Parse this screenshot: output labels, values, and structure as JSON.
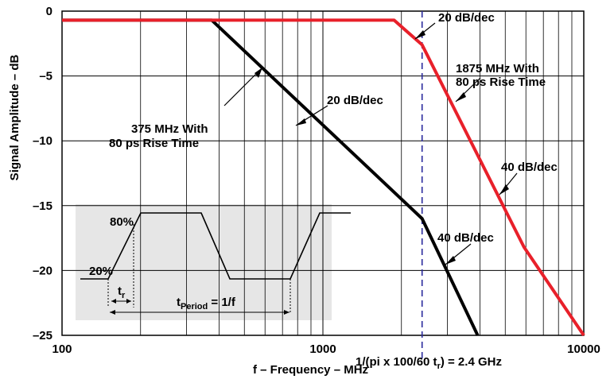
{
  "chart_data": {
    "type": "line",
    "xscale": "log",
    "xlim": [
      100,
      10000
    ],
    "ylim": [
      -25,
      0
    ],
    "grid": true,
    "xlabel": "f – Frequency – MHz",
    "ylabel": "Signal Amplitude – dB",
    "x_ticks": [
      "100",
      "1000",
      "10000"
    ],
    "y_ticks": [
      "0",
      "–5",
      "–10",
      "–15",
      "–20",
      "–25"
    ],
    "series": [
      {
        "color": "#000000",
        "x": [
          100,
          375,
          2400,
          3920
        ],
        "y": [
          -0.7,
          -0.7,
          -16.0,
          -25.0
        ]
      },
      {
        "color": "#e8202a",
        "x": [
          100,
          1875,
          2400,
          5900,
          10000
        ],
        "y": [
          -0.7,
          -0.7,
          -2.6,
          -18.2,
          -25.0
        ]
      }
    ],
    "vline": {
      "x": 2400,
      "color": "#2a2a9c",
      "label": "1/(pi x 100/60 t",
      "label_sub": "r",
      "label_end": ") = 2.4 GHz"
    },
    "annotations": [
      {
        "id": "a1",
        "text": "20 dB/dec"
      },
      {
        "id": "a2",
        "text": "1875 MHz With",
        "text2": "80 ps Rise Time"
      },
      {
        "id": "a3",
        "text": "20 dB/dec"
      },
      {
        "id": "a4",
        "text": "375 MHz With",
        "text2": "80 ps Rise Time"
      },
      {
        "id": "a5",
        "text": "40 dB/dec"
      },
      {
        "id": "a6",
        "text": "40 dB/dec"
      }
    ],
    "inset": {
      "label_80": "80%",
      "label_20": "20%",
      "tr": "t",
      "tr_sub": "r",
      "tperiod": "t",
      "tperiod_sub": "Period",
      "tperiod_end": " = 1/f"
    }
  }
}
